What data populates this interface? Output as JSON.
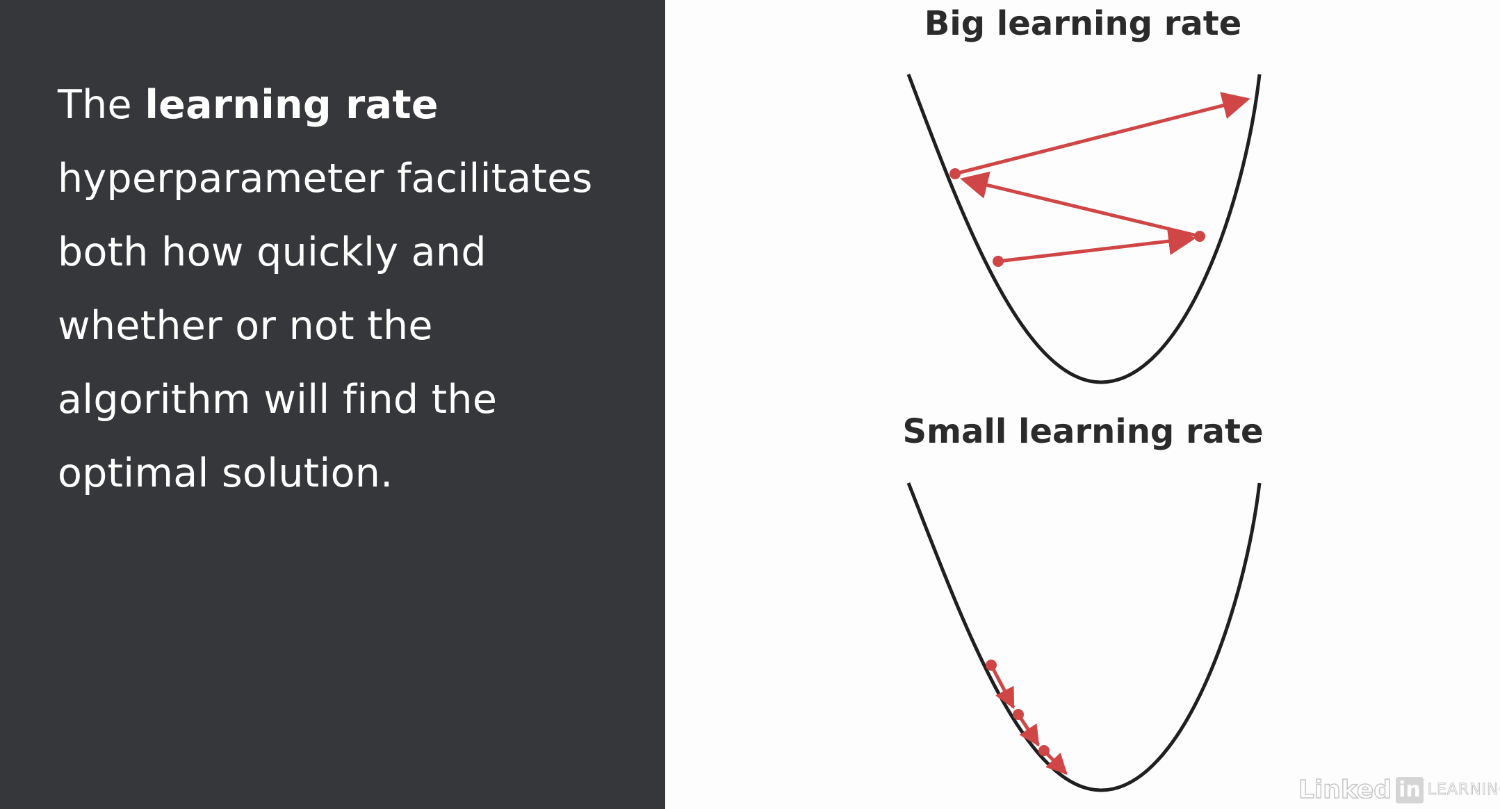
{
  "slide": {
    "body_lines": [
      {
        "before": "The ",
        "bold": "learning rate",
        "after": ""
      },
      {
        "before": "hyperparameter facilitates",
        "bold": "",
        "after": ""
      },
      {
        "before": "both how quickly and",
        "bold": "",
        "after": ""
      },
      {
        "before": "whether or not the",
        "bold": "",
        "after": ""
      },
      {
        "before": "algorithm will find the",
        "bold": "",
        "after": ""
      },
      {
        "before": "optimal solution.",
        "bold": "",
        "after": ""
      }
    ]
  },
  "diagrams": {
    "big": {
      "title": "Big learning rate"
    },
    "small": {
      "title": "Small learning rate"
    }
  },
  "watermark": {
    "linked": "Linked",
    "in": "in",
    "learning": "LEARNING"
  },
  "colors": {
    "panel_dark": "#36373a",
    "curve": "#1f1f1f",
    "step_arrow": "#d04545",
    "text_light": "#ffffff"
  }
}
